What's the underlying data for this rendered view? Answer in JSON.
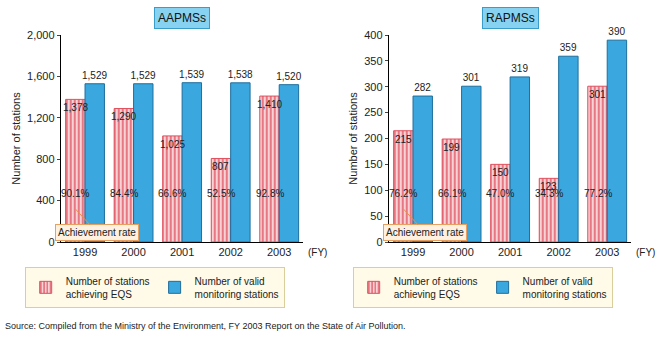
{
  "chart_data": [
    {
      "type": "bar",
      "title": "AAPMSs",
      "categories": [
        "1999",
        "2000",
        "2001",
        "2002",
        "2003"
      ],
      "x_label": "(FY)",
      "y_label": "Number of stations",
      "series": [
        {
          "name": "Number of stations achieving EQS",
          "color": "#e0505e",
          "marker": "striped",
          "values": [
            1378,
            1290,
            1025,
            807,
            1410
          ],
          "value_labels": [
            "1,378",
            "1,290",
            "1,025",
            "807",
            "1,410"
          ]
        },
        {
          "name": "Number of valid monitoring stations",
          "color": "#3aa8de",
          "values": [
            1529,
            1529,
            1539,
            1538,
            1520
          ],
          "value_labels": [
            "1,529",
            "1,529",
            "1,539",
            "1,538",
            "1,520"
          ]
        }
      ],
      "achievement_rate": {
        "name": "Achievement rate",
        "values": [
          90.1,
          84.4,
          66.6,
          52.5,
          92.8
        ],
        "value_labels": [
          "90.1%",
          "84.4%",
          "66.6%",
          "52.5%",
          "92.8%"
        ]
      },
      "ylim": [
        0,
        2000
      ],
      "yticks": [
        0,
        400,
        800,
        {
          "value": 1200,
          "label": "1,200"
        },
        {
          "value": 1600,
          "label": "1,600"
        },
        {
          "value": 2000,
          "label": "2,000"
        }
      ],
      "grid": false,
      "data_labels": true,
      "legend": "bottom"
    },
    {
      "type": "bar",
      "title": "RAPMSs",
      "categories": [
        "1999",
        "2000",
        "2001",
        "2002",
        "2003"
      ],
      "x_label": "(FY)",
      "y_label": "Number of stations",
      "series": [
        {
          "name": "Number of stations achieving EQS",
          "color": "#e0505e",
          "marker": "striped",
          "values": [
            215,
            199,
            150,
            123,
            301
          ]
        },
        {
          "name": "Number of valid monitoring stations",
          "color": "#3aa8de",
          "values": [
            282,
            301,
            319,
            359,
            390
          ]
        }
      ],
      "achievement_rate": {
        "name": "Achievement rate",
        "values": [
          76.2,
          66.1,
          47.0,
          34.3,
          77.2
        ],
        "value_labels": [
          "76.2%",
          "66.1%",
          "47.0%",
          "34.3%",
          "77.2%"
        ]
      },
      "ylim": [
        0,
        400
      ],
      "yticks": [
        0,
        50,
        100,
        150,
        200,
        250,
        300,
        350,
        400
      ],
      "grid": false,
      "data_labels": true,
      "legend": "bottom"
    }
  ],
  "source": "Source: Compiled from the Ministry of the Environment, FY 2003 Report on the State of Air Pollution."
}
